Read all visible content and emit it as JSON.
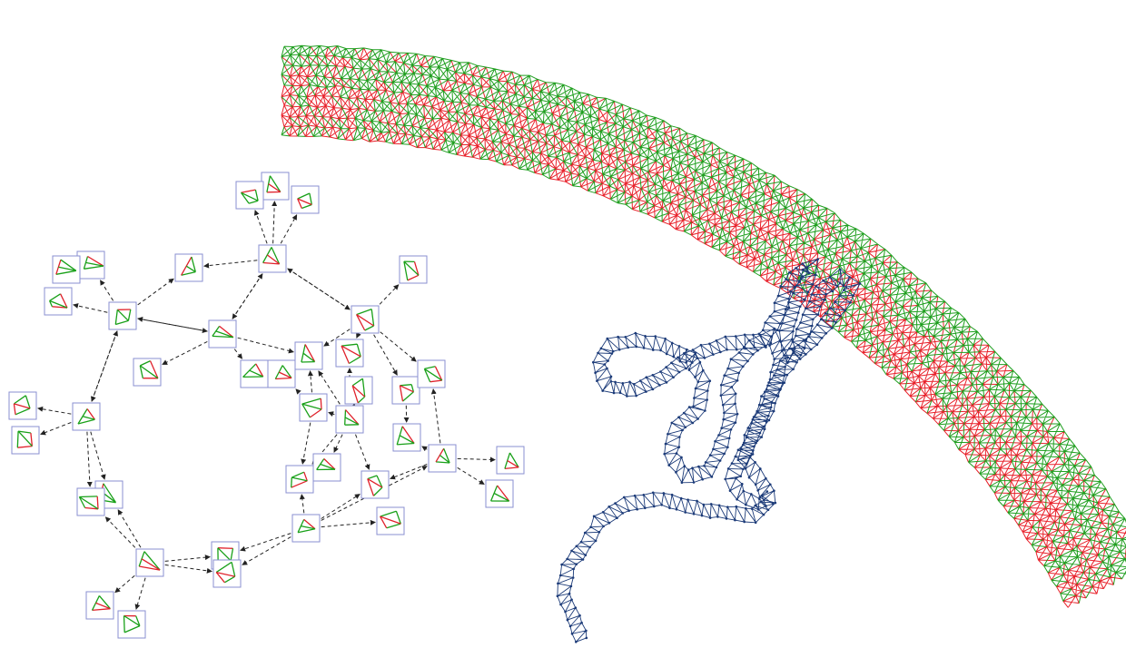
{
  "figure": {
    "colors": {
      "strand_outer": "#1e9e1e",
      "strand_inner": "#e8202a",
      "chain": "#1b3a78",
      "box_border": "#8a8fd0",
      "edge": "#222222",
      "node_tri_a": "#18a018",
      "node_tri_b": "#e0202a"
    },
    "panels": [
      {
        "name": "graph-panel"
      },
      {
        "name": "chain-panel"
      },
      {
        "name": "strip-panel"
      }
    ]
  }
}
